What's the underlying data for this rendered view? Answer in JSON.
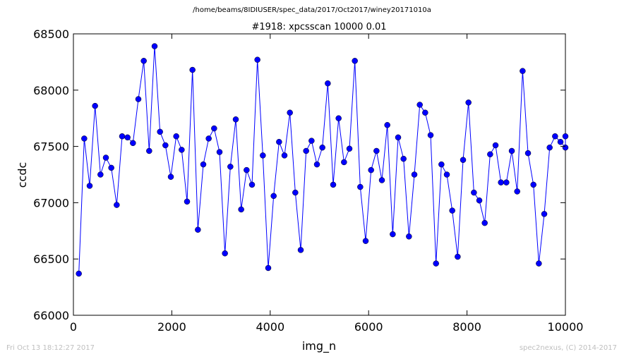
{
  "suptitle": "/home/beams/8IDIUSER/spec_data/2017/Oct2017/winey20171010a",
  "footer": {
    "timestamp": "Fri Oct 13 18:12:27 2017",
    "credit": "spec2nexus, (C) 2014-2017"
  },
  "colors": {
    "line": "#0000ff",
    "marker": "#0000ff"
  },
  "chart_data": {
    "type": "line",
    "title": "#1918: xpcsscan 10000 0.01",
    "xlabel": "img_n",
    "ylabel": "ccdc",
    "xlim": [
      0,
      10000
    ],
    "ylim": [
      66000,
      68500
    ],
    "xticks": [
      "0",
      "2000",
      "4000",
      "6000",
      "8000",
      "10000"
    ],
    "yticks": [
      "66000",
      "66500",
      "67000",
      "67500",
      "68000",
      "68500"
    ],
    "grid": false,
    "legend": "none",
    "series": [
      {
        "x": [
          110,
          220,
          330,
          440,
          550,
          660,
          770,
          880,
          990,
          1100,
          1210,
          1320,
          1430,
          1540,
          1650,
          1760,
          1870,
          1980,
          2090,
          2200,
          2310,
          2420,
          2530,
          2640,
          2750,
          2860,
          2970,
          3080,
          3190,
          3300,
          3410,
          3520,
          3630,
          3740,
          3850,
          3960,
          4070,
          4180,
          4290,
          4400,
          4510,
          4620,
          4730,
          4840,
          4950,
          5060,
          5170,
          5280,
          5390,
          5500,
          5610,
          5720,
          5830,
          5940,
          6050,
          6160,
          6270,
          6380,
          6490,
          6600,
          6710,
          6820,
          6930,
          7040,
          7150,
          7260,
          7370,
          7480,
          7590,
          7700,
          7810,
          7920,
          8030,
          8140,
          8250,
          8360,
          8470,
          8580,
          8690,
          8800,
          8910,
          9020,
          9130,
          9240,
          9350,
          9460,
          9570,
          9680,
          9790,
          9900,
          10000,
          10000
        ],
        "values": [
          66370,
          67570,
          67150,
          67860,
          67250,
          67400,
          67310,
          66980,
          67590,
          67580,
          67530,
          67920,
          68260,
          67460,
          68390,
          67630,
          67510,
          67230,
          67590,
          67470,
          67010,
          68180,
          66760,
          67340,
          67570,
          67660,
          67450,
          66550,
          67320,
          67740,
          66940,
          67290,
          67160,
          68270,
          67420,
          66420,
          67060,
          67540,
          67420,
          67800,
          67090,
          66580,
          67460,
          67550,
          67340,
          67490,
          68060,
          67160,
          67750,
          67360,
          67480,
          68260,
          67140,
          66660,
          67290,
          67460,
          67200,
          67690,
          66720,
          67580,
          67390,
          66700,
          67250,
          67870,
          67800,
          67600,
          66460,
          67340,
          67250,
          66930,
          66520,
          67380,
          67890,
          67090,
          67020,
          66820,
          67430,
          67510,
          67180,
          67180,
          67460,
          67100,
          68170,
          67440,
          67160,
          66460,
          66900,
          67490,
          67590,
          67540,
          67490,
          67590
        ]
      }
    ]
  }
}
